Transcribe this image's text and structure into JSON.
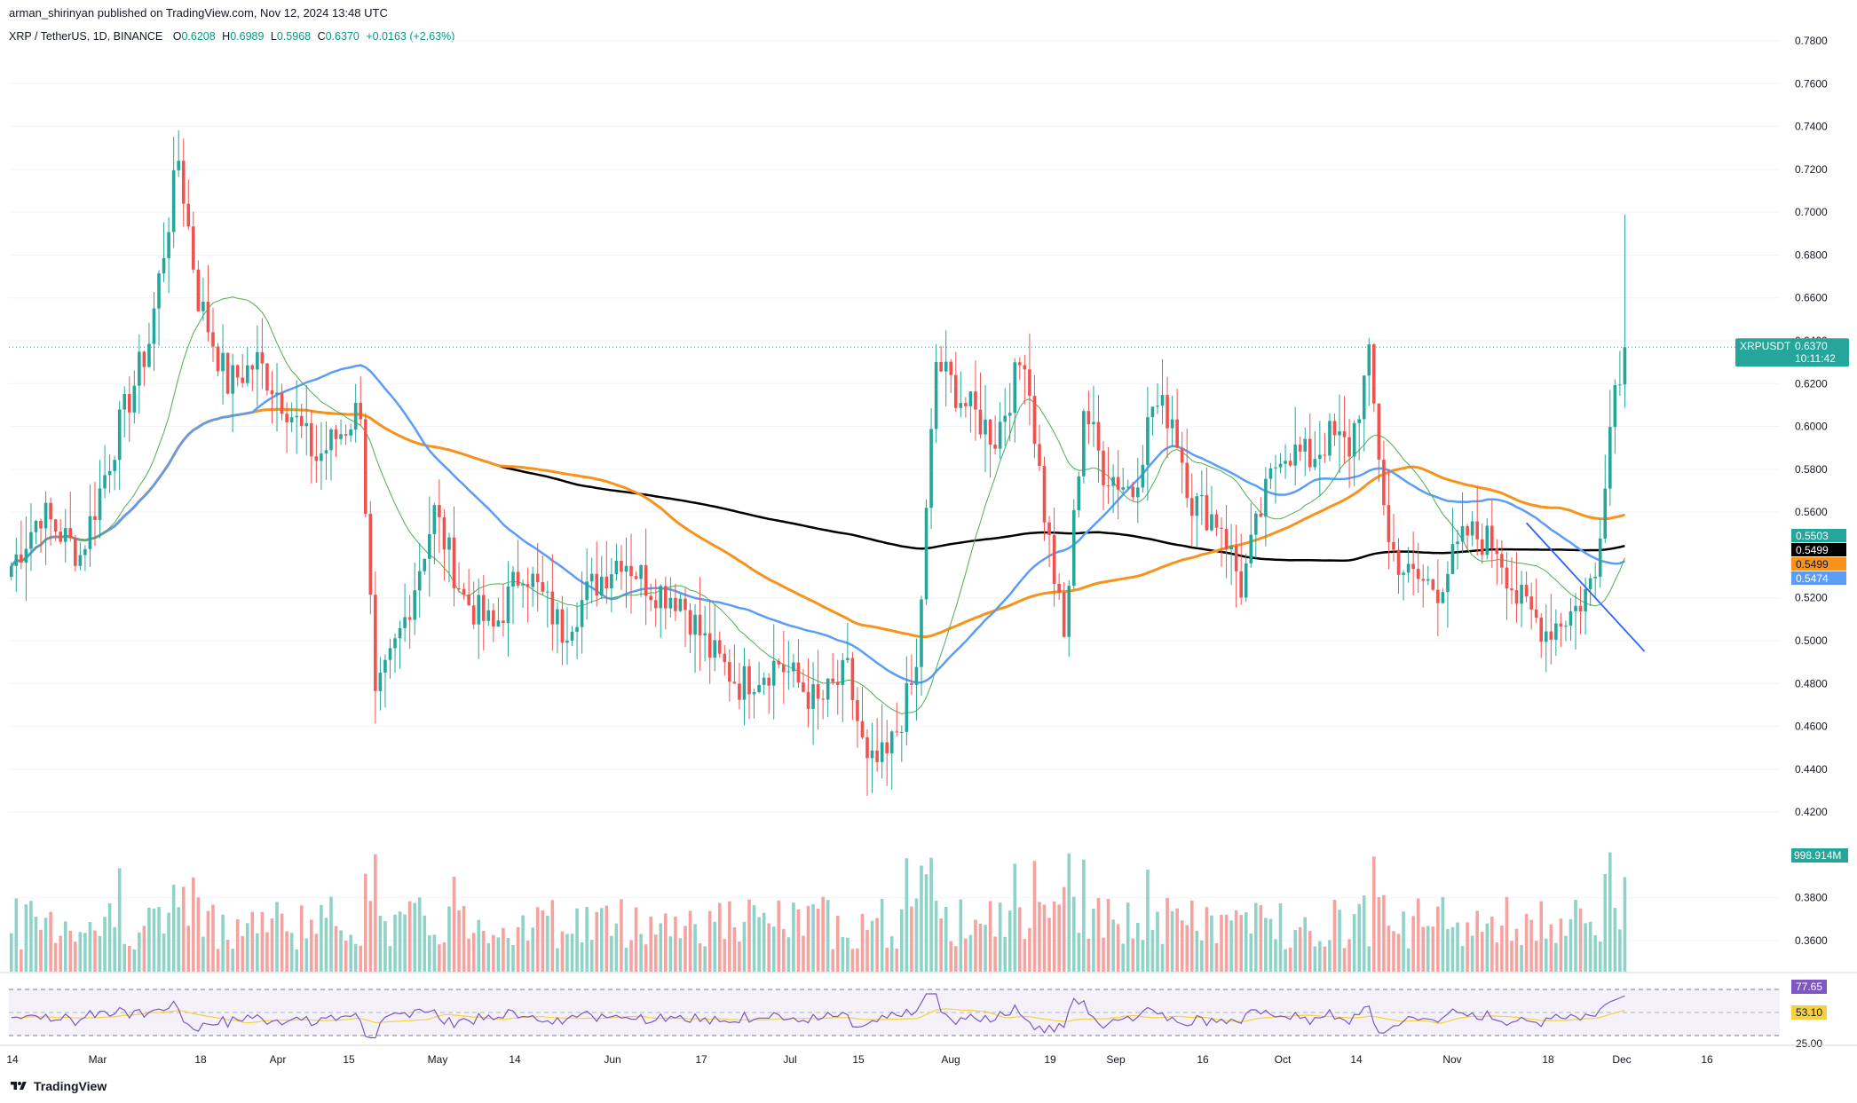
{
  "header": {
    "published": "arman_shirinyan published on TradingView.com, Nov 12, 2024 13:48 UTC"
  },
  "legend": {
    "symbol": "XRP / TetherUS, 1D, BINANCE",
    "o_label": "O",
    "o": "0.6208",
    "h_label": "H",
    "h": "0.6989",
    "l_label": "L",
    "l": "0.5968",
    "c_label": "C",
    "c": "0.6370",
    "change": "+0.0163 (+2.63%)"
  },
  "colors": {
    "up": "#26a69a",
    "down": "#ef5350",
    "ma_blue": "#5b9cf6",
    "ma_orange": "#f7931a",
    "ma_black": "#000000",
    "ma_green": "#4caf50",
    "rsi": "#7e57c2",
    "rsi_ma": "#f5d142",
    "vol_up": "#8fd3c8",
    "vol_down": "#f5a3a0"
  },
  "chart_data": {
    "type": "candlestick",
    "price_axis": {
      "ticks": [
        "0.7800",
        "0.7600",
        "0.7400",
        "0.7200",
        "0.7000",
        "0.6800",
        "0.6600",
        "0.6400",
        "0.6200",
        "0.6000",
        "0.5800",
        "0.5600",
        "0.5200",
        "0.5000",
        "0.4800",
        "0.4600",
        "0.4400",
        "0.4200",
        "0.3800",
        "0.3600"
      ],
      "range": [
        0.345,
        0.79
      ]
    },
    "time_axis": {
      "labels": [
        "14",
        "Mar",
        "18",
        "Apr",
        "15",
        "May",
        "14",
        "Jun",
        "17",
        "Jul",
        "15",
        "Aug",
        "19",
        "Sep",
        "16",
        "Oct",
        "14",
        "Nov",
        "18",
        "Dec",
        "16"
      ]
    },
    "current_price": {
      "label": "XRPUSDT",
      "value": "0.6370",
      "countdown": "10:11:42"
    },
    "ma_badges": [
      {
        "value": "0.5503",
        "color": "#26a69a"
      },
      {
        "value": "0.5499",
        "color": "#000000"
      },
      {
        "value": "0.5499",
        "color": "#f7931a"
      },
      {
        "value": "0.5474",
        "color": "#5b9cf6"
      }
    ],
    "volume_badge": "998.914M",
    "rsi": {
      "value": "77.65",
      "ma_value": "53.10",
      "axis_label": "25.00",
      "upper": 70,
      "lower": 30
    },
    "close_keypoints": [
      [
        0,
        0.535
      ],
      [
        6,
        0.56
      ],
      [
        14,
        0.54
      ],
      [
        22,
        0.6
      ],
      [
        28,
        0.64
      ],
      [
        34,
        0.725
      ],
      [
        38,
        0.66
      ],
      [
        44,
        0.62
      ],
      [
        50,
        0.63
      ],
      [
        56,
        0.61
      ],
      [
        62,
        0.585
      ],
      [
        68,
        0.6
      ],
      [
        71,
        0.61
      ],
      [
        74,
        0.47
      ],
      [
        80,
        0.51
      ],
      [
        86,
        0.56
      ],
      [
        92,
        0.52
      ],
      [
        98,
        0.505
      ],
      [
        104,
        0.535
      ],
      [
        112,
        0.505
      ],
      [
        118,
        0.525
      ],
      [
        124,
        0.54
      ],
      [
        130,
        0.525
      ],
      [
        136,
        0.52
      ],
      [
        142,
        0.495
      ],
      [
        148,
        0.48
      ],
      [
        156,
        0.49
      ],
      [
        164,
        0.47
      ],
      [
        170,
        0.485
      ],
      [
        174,
        0.44
      ],
      [
        178,
        0.445
      ],
      [
        184,
        0.485
      ],
      [
        188,
        0.63
      ],
      [
        194,
        0.61
      ],
      [
        200,
        0.595
      ],
      [
        206,
        0.635
      ],
      [
        210,
        0.56
      ],
      [
        214,
        0.5
      ],
      [
        218,
        0.61
      ],
      [
        222,
        0.58
      ],
      [
        228,
        0.57
      ],
      [
        232,
        0.61
      ],
      [
        236,
        0.605
      ],
      [
        240,
        0.565
      ],
      [
        246,
        0.555
      ],
      [
        250,
        0.525
      ],
      [
        254,
        0.56
      ],
      [
        258,
        0.59
      ],
      [
        264,
        0.585
      ],
      [
        268,
        0.595
      ],
      [
        272,
        0.59
      ],
      [
        276,
        0.63
      ],
      [
        280,
        0.545
      ],
      [
        284,
        0.53
      ],
      [
        290,
        0.525
      ],
      [
        296,
        0.55
      ],
      [
        302,
        0.545
      ],
      [
        306,
        0.52
      ],
      [
        312,
        0.505
      ],
      [
        318,
        0.515
      ],
      [
        322,
        0.53
      ],
      [
        324,
        0.58
      ],
      [
        326,
        0.62
      ],
      [
        328,
        0.637
      ]
    ],
    "trendline": [
      [
        308,
        0.555
      ],
      [
        332,
        0.495
      ]
    ]
  },
  "footer": {
    "brand": "TradingView"
  }
}
